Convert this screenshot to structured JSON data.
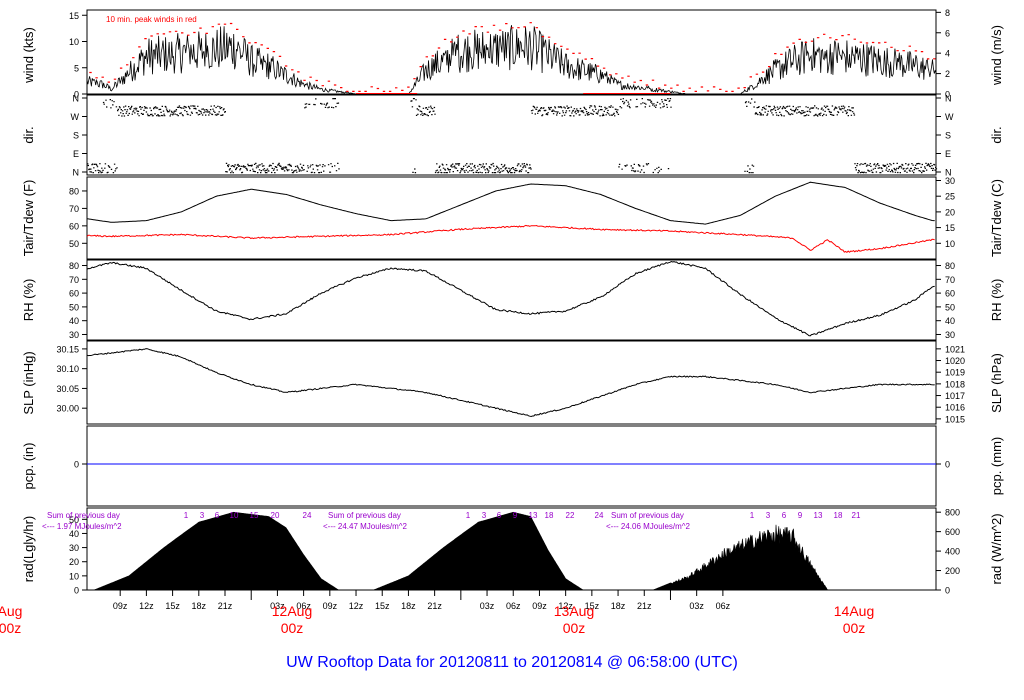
{
  "footer_title": "UW Rooftop Data for 20120811  to  20120814 @ 06:58:00  (UTC)",
  "colors": {
    "red": "#ff0000",
    "purple": "#9900cc",
    "blue": "#0000ff",
    "title": "#0000ff",
    "black": "#000000"
  },
  "wind_note": "10 min. peak winds in red",
  "panels": {
    "wind": {
      "ylabel_left": "wind (kts)",
      "ylabel_right": "wind (m/s)",
      "ylim": [
        0,
        16
      ],
      "ticks_left": [
        "0",
        "5",
        "10",
        "15"
      ],
      "ticks_right": [
        "0",
        "2",
        "4",
        "6",
        "8"
      ]
    },
    "dir": {
      "ylabel_left": "dir.",
      "ticks": [
        "N",
        "W",
        "S",
        "E",
        "N"
      ]
    },
    "temp": {
      "ylabel_left": "Tair/Tdew (F)",
      "ylabel_right": "Tair/Tdew (C)",
      "ylim": [
        41,
        88
      ],
      "ticks_left": [
        "50",
        "60",
        "70",
        "80"
      ],
      "ticks_right": [
        "10",
        "15",
        "20",
        "25",
        "30"
      ]
    },
    "rh": {
      "ylabel_left": "RH (%)",
      "ylabel_right": "RH (%)",
      "ylim": [
        26,
        84
      ],
      "ticks": [
        "30",
        "40",
        "50",
        "60",
        "70",
        "80"
      ]
    },
    "slp": {
      "ylabel_left": "SLP (inHg)",
      "ylabel_right": "SLP (hPa)",
      "ylim": [
        29.96,
        30.17
      ],
      "ticks_left": [
        "30.00",
        "30.05",
        "30.10",
        "30.15"
      ],
      "ticks_right": [
        "1015",
        "1016",
        "1017",
        "1018",
        "1019",
        "1020",
        "1021"
      ]
    },
    "pcp": {
      "ylabel_left": "pcp. (in)",
      "ylabel_right": "pcp. (mm)",
      "tick_left": "0",
      "tick_right": "0"
    },
    "rad": {
      "ylabel_left": "rad(Lgly/hr)",
      "ylabel_right": "rad (W/m^2)",
      "ylim": [
        0,
        58
      ],
      "ticks_left": [
        "0",
        "10",
        "20",
        "30",
        "40",
        "50"
      ],
      "ticks_right": [
        "0",
        "200",
        "400",
        "600",
        "800"
      ],
      "summaries": [
        {
          "line1": "Sum of previous day",
          "line2": "<--- 1.97 MJoules/m^2"
        },
        {
          "line1": "Sum of previous day",
          "line2": "<--- 24.47 MJoules/m^2"
        },
        {
          "line1": "Sum of previous day",
          "line2": "<--- 24.06 MJoules/m^2"
        }
      ],
      "hour_labels": [
        [
          "1",
          "3",
          "6",
          "10",
          "15",
          "20",
          "24"
        ],
        [
          "1",
          "3",
          "6",
          "9",
          "13",
          "18",
          "22",
          "24"
        ],
        [
          "1",
          "3",
          "6",
          "9",
          "13",
          "18",
          "21"
        ]
      ]
    }
  },
  "x_axis": {
    "hour_ticks": [
      "09z",
      "12z",
      "15z",
      "18z",
      "21z",
      "03z",
      "06z",
      "09z",
      "12z",
      "15z",
      "18z",
      "21z",
      "03z",
      "06z",
      "09z",
      "12z",
      "15z",
      "18z",
      "21z",
      "03z",
      "06z"
    ],
    "day_labels": [
      {
        "date": "Aug",
        "time": "00z"
      },
      {
        "date": "12Aug",
        "time": "00z"
      },
      {
        "date": "13Aug",
        "time": "00z"
      },
      {
        "date": "14Aug",
        "time": "00z"
      }
    ]
  },
  "chart_data": {
    "type": "line",
    "x_unit": "hours since 2012-08-11 00z",
    "series": [
      {
        "name": "wind",
        "x": [
          0,
          4,
          7,
          8,
          12,
          18,
          22,
          24,
          26,
          30,
          32,
          36,
          38,
          42,
          44,
          48,
          56,
          60,
          64,
          66,
          70,
          74,
          76,
          80,
          84,
          86,
          88,
          92,
          96,
          100,
          102
        ],
        "values": [
          1,
          3,
          2,
          1,
          8,
          9,
          10,
          7,
          6,
          2,
          1,
          0,
          0,
          0,
          5,
          9,
          10,
          6,
          4,
          2,
          1,
          0,
          0,
          0,
          5,
          7,
          8,
          8,
          7,
          6,
          5
        ]
      },
      {
        "name": "Tair",
        "x": [
          0,
          4,
          8,
          12,
          16,
          20,
          24,
          28,
          32,
          36,
          40,
          44,
          48,
          52,
          56,
          60,
          64,
          68,
          72,
          76,
          80,
          84,
          88,
          92,
          96,
          100,
          102
        ],
        "values": [
          67,
          65,
          62,
          63,
          68,
          77,
          81,
          78,
          72,
          67,
          63,
          64,
          72,
          80,
          84,
          83,
          78,
          70,
          63,
          61,
          66,
          77,
          85,
          82,
          73,
          66,
          63
        ]
      },
      {
        "name": "Tdew",
        "x": [
          0,
          8,
          16,
          24,
          32,
          40,
          48,
          56,
          64,
          72,
          80,
          86,
          88,
          90,
          92,
          96,
          102
        ],
        "values": [
          55,
          54,
          55,
          53,
          54,
          55,
          58,
          60,
          58,
          57,
          55,
          53,
          46,
          52,
          45,
          47,
          52
        ]
      },
      {
        "name": "RH",
        "x": [
          0,
          4,
          8,
          12,
          16,
          20,
          24,
          28,
          32,
          36,
          40,
          44,
          48,
          52,
          56,
          60,
          64,
          68,
          72,
          76,
          80,
          84,
          88,
          92,
          96,
          100,
          102
        ],
        "values": [
          72,
          76,
          82,
          78,
          62,
          47,
          41,
          45,
          60,
          71,
          78,
          76,
          62,
          48,
          45,
          47,
          57,
          74,
          83,
          78,
          59,
          42,
          29,
          38,
          44,
          55,
          65
        ]
      },
      {
        "name": "SLP",
        "x": [
          0,
          4,
          8,
          12,
          16,
          20,
          24,
          28,
          32,
          36,
          40,
          44,
          48,
          52,
          56,
          60,
          64,
          68,
          72,
          76,
          80,
          84,
          88,
          92,
          96,
          100,
          102
        ],
        "values": [
          30.13,
          30.13,
          30.14,
          30.15,
          30.13,
          30.09,
          30.06,
          30.04,
          30.05,
          30.06,
          30.05,
          30.04,
          30.02,
          30.0,
          29.98,
          30.0,
          30.03,
          30.06,
          30.08,
          30.08,
          30.07,
          30.06,
          30.04,
          30.05,
          30.06,
          30.06,
          30.06
        ]
      },
      {
        "name": "pcp",
        "x": [
          0,
          102
        ],
        "values": [
          0,
          0
        ]
      },
      {
        "name": "rad",
        "x": [
          6,
          10,
          14,
          18,
          22,
          26,
          28,
          30,
          32,
          34,
          36,
          38,
          42,
          46,
          50,
          54,
          56,
          58,
          60,
          62,
          64,
          70,
          74,
          78,
          82,
          84,
          86,
          88,
          90
        ],
        "values": [
          0,
          10,
          30,
          48,
          55,
          52,
          44,
          25,
          8,
          0,
          0,
          0,
          10,
          30,
          48,
          55,
          52,
          28,
          8,
          0,
          0,
          0,
          10,
          28,
          40,
          44,
          42,
          20,
          0
        ]
      }
    ]
  }
}
